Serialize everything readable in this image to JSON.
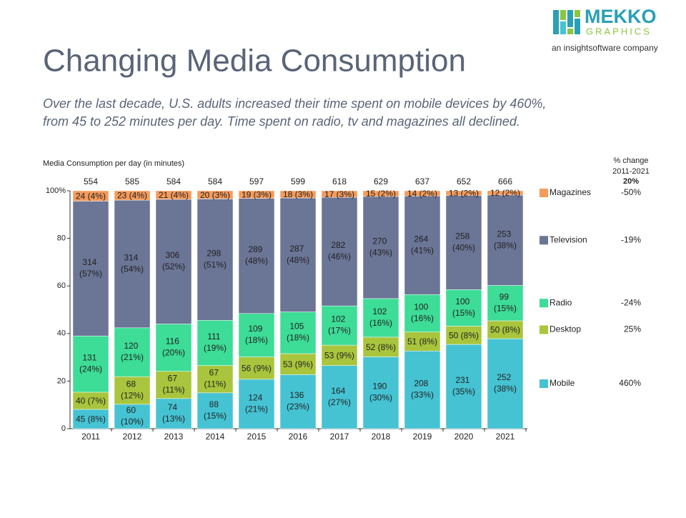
{
  "logo": {
    "name": "MEKKO",
    "sub": "GRAPHICS",
    "tagline": "an insightsoftware company"
  },
  "chart_data": {
    "type": "stacked100",
    "title": "Changing Media Consumption",
    "subtitle": [
      "Over the last decade, U.S. adults increased their time spent on mobile devices by 460%,",
      "from 45 to 252 minutes per day.  Time spent on radio, tv and magazines all declined."
    ],
    "ylabel": "Media Consumption per day (in minutes)",
    "change_header": [
      "% change",
      "2011-2021"
    ],
    "change_total": "20%",
    "categories": [
      "2011",
      "2012",
      "2013",
      "2014",
      "2015",
      "2016",
      "2017",
      "2018",
      "2019",
      "2020",
      "2021"
    ],
    "totals": [
      554,
      585,
      584,
      584,
      597,
      599,
      618,
      629,
      637,
      652,
      666
    ],
    "ylim": [
      0,
      100
    ],
    "yticks": [
      0,
      20,
      40,
      60,
      80,
      {
        "value": 100,
        "label": "100%"
      }
    ],
    "series": [
      {
        "name": "Mobile",
        "color": "#45c3d3",
        "change": "460%",
        "values": [
          45,
          60,
          74,
          88,
          124,
          136,
          164,
          190,
          208,
          231,
          252
        ],
        "value_labels": [
          "45 (8%)",
          "60 (10%)",
          "74 (13%)",
          "88 (15%)",
          "124 (21%)",
          "136 (23%)",
          "164 (27%)",
          "190 (30%)",
          "208 (33%)",
          "231 (35%)",
          "252 (38%)"
        ]
      },
      {
        "name": "Desktop",
        "color": "#a9c53d",
        "change": "25%",
        "values": [
          40,
          68,
          67,
          67,
          56,
          53,
          53,
          52,
          51,
          50,
          50
        ],
        "value_labels": [
          "40 (7%)",
          "68 (12%)",
          "67 (11%)",
          "67 (11%)",
          "56 (9%)",
          "53 (9%)",
          "53 (9%)",
          "52 (8%)",
          "51 (8%)",
          "50 (8%)",
          "50 (8%)"
        ]
      },
      {
        "name": "Radio",
        "color": "#3ddc97",
        "change": "-24%",
        "values": [
          131,
          120,
          116,
          111,
          109,
          105,
          102,
          102,
          100,
          100,
          99
        ],
        "value_labels": [
          "131 (24%)",
          "120 (21%)",
          "116 (20%)",
          "111 (19%)",
          "109 (18%)",
          "105 (18%)",
          "102 (17%)",
          "102 (16%)",
          "100 (16%)",
          "100 (15%)",
          "99 (15%)"
        ]
      },
      {
        "name": "Television",
        "color": "#6b7596",
        "change": "-19%",
        "values": [
          314,
          314,
          306,
          298,
          289,
          287,
          282,
          270,
          264,
          258,
          253
        ],
        "value_labels": [
          "314 (57%)",
          "314 (54%)",
          "306 (52%)",
          "298 (51%)",
          "289 (48%)",
          "287 (48%)",
          "282 (46%)",
          "270 (43%)",
          "264 (41%)",
          "258 (40%)",
          "253 (38%)"
        ]
      },
      {
        "name": "Magazines",
        "color": "#f59b5b",
        "change": "-50%",
        "values": [
          24,
          23,
          21,
          20,
          19,
          18,
          17,
          15,
          14,
          13,
          12
        ],
        "value_labels": [
          "24 (4%)",
          "23 (4%)",
          "21 (4%)",
          "20 (3%)",
          "19 (3%)",
          "18 (3%)",
          "17 (3%)",
          "15 (2%)",
          "14 (2%)",
          "13 (2%)",
          "12 (2%)"
        ]
      }
    ]
  }
}
